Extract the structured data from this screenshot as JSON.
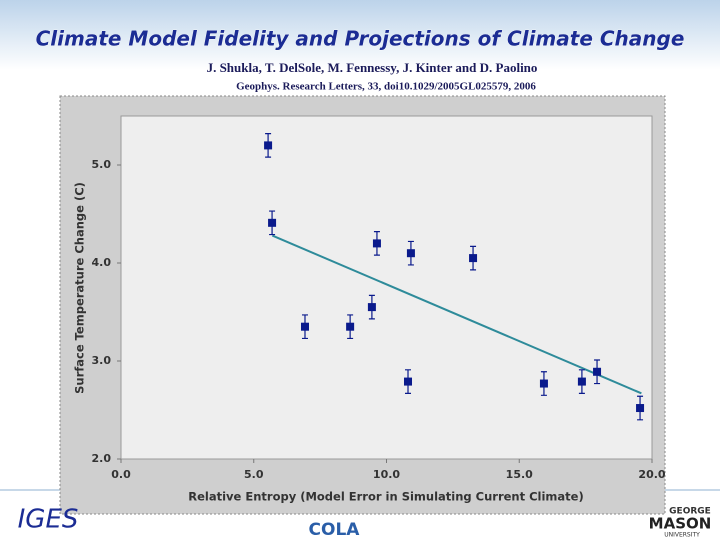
{
  "slide": {
    "title": "Climate Model Fidelity and Projections of Climate Change",
    "authors": "J. Shukla, T. DelSole, M. Fennessy, J. Kinter and D. Paolino",
    "citation": "Geophys. Research Letters, 33, doi10.1029/2005GL025579, 2006",
    "logos": [
      "IGES",
      "COLA",
      "GEORGE",
      "MASON",
      "UNIVERSITY"
    ]
  },
  "chart_data": {
    "type": "scatter",
    "xlabel": "Relative Entropy (Model Error in Simulating Current Climate)",
    "ylabel": "Surface Temperature Change (C)",
    "x": [
      5.54,
      5.69,
      6.93,
      8.63,
      9.45,
      9.64,
      10.92,
      10.81,
      13.26,
      15.93,
      17.36,
      17.93,
      19.55
    ],
    "values": [
      5.2,
      4.41,
      3.35,
      3.35,
      3.55,
      4.2,
      4.1,
      2.79,
      4.05,
      2.77,
      2.79,
      2.89,
      2.52
    ],
    "errors": [
      0.12,
      0.12,
      0.12,
      0.12,
      0.12,
      0.12,
      0.12,
      0.12,
      0.12,
      0.12,
      0.12,
      0.12,
      0.12
    ],
    "color": "#0a1a8c",
    "trendline": {
      "x": [
        5.7,
        19.6
      ],
      "y": [
        4.28,
        2.67
      ],
      "color": "#2e8b9a"
    },
    "xlim": [
      0,
      20
    ],
    "ylim": [
      2,
      5.5
    ],
    "xticks": [
      {
        "value": 0,
        "label": "0.0"
      },
      {
        "value": 5,
        "label": "5.0"
      },
      {
        "value": 10,
        "label": "10.0"
      },
      {
        "value": 15,
        "label": "15.0"
      },
      {
        "value": 20,
        "label": "20.0"
      }
    ],
    "yticks": [
      {
        "value": 2,
        "label": "2.0"
      },
      {
        "value": 3,
        "label": "3.0"
      },
      {
        "value": 4,
        "label": "4.0"
      },
      {
        "value": 5,
        "label": "5.0"
      }
    ]
  }
}
